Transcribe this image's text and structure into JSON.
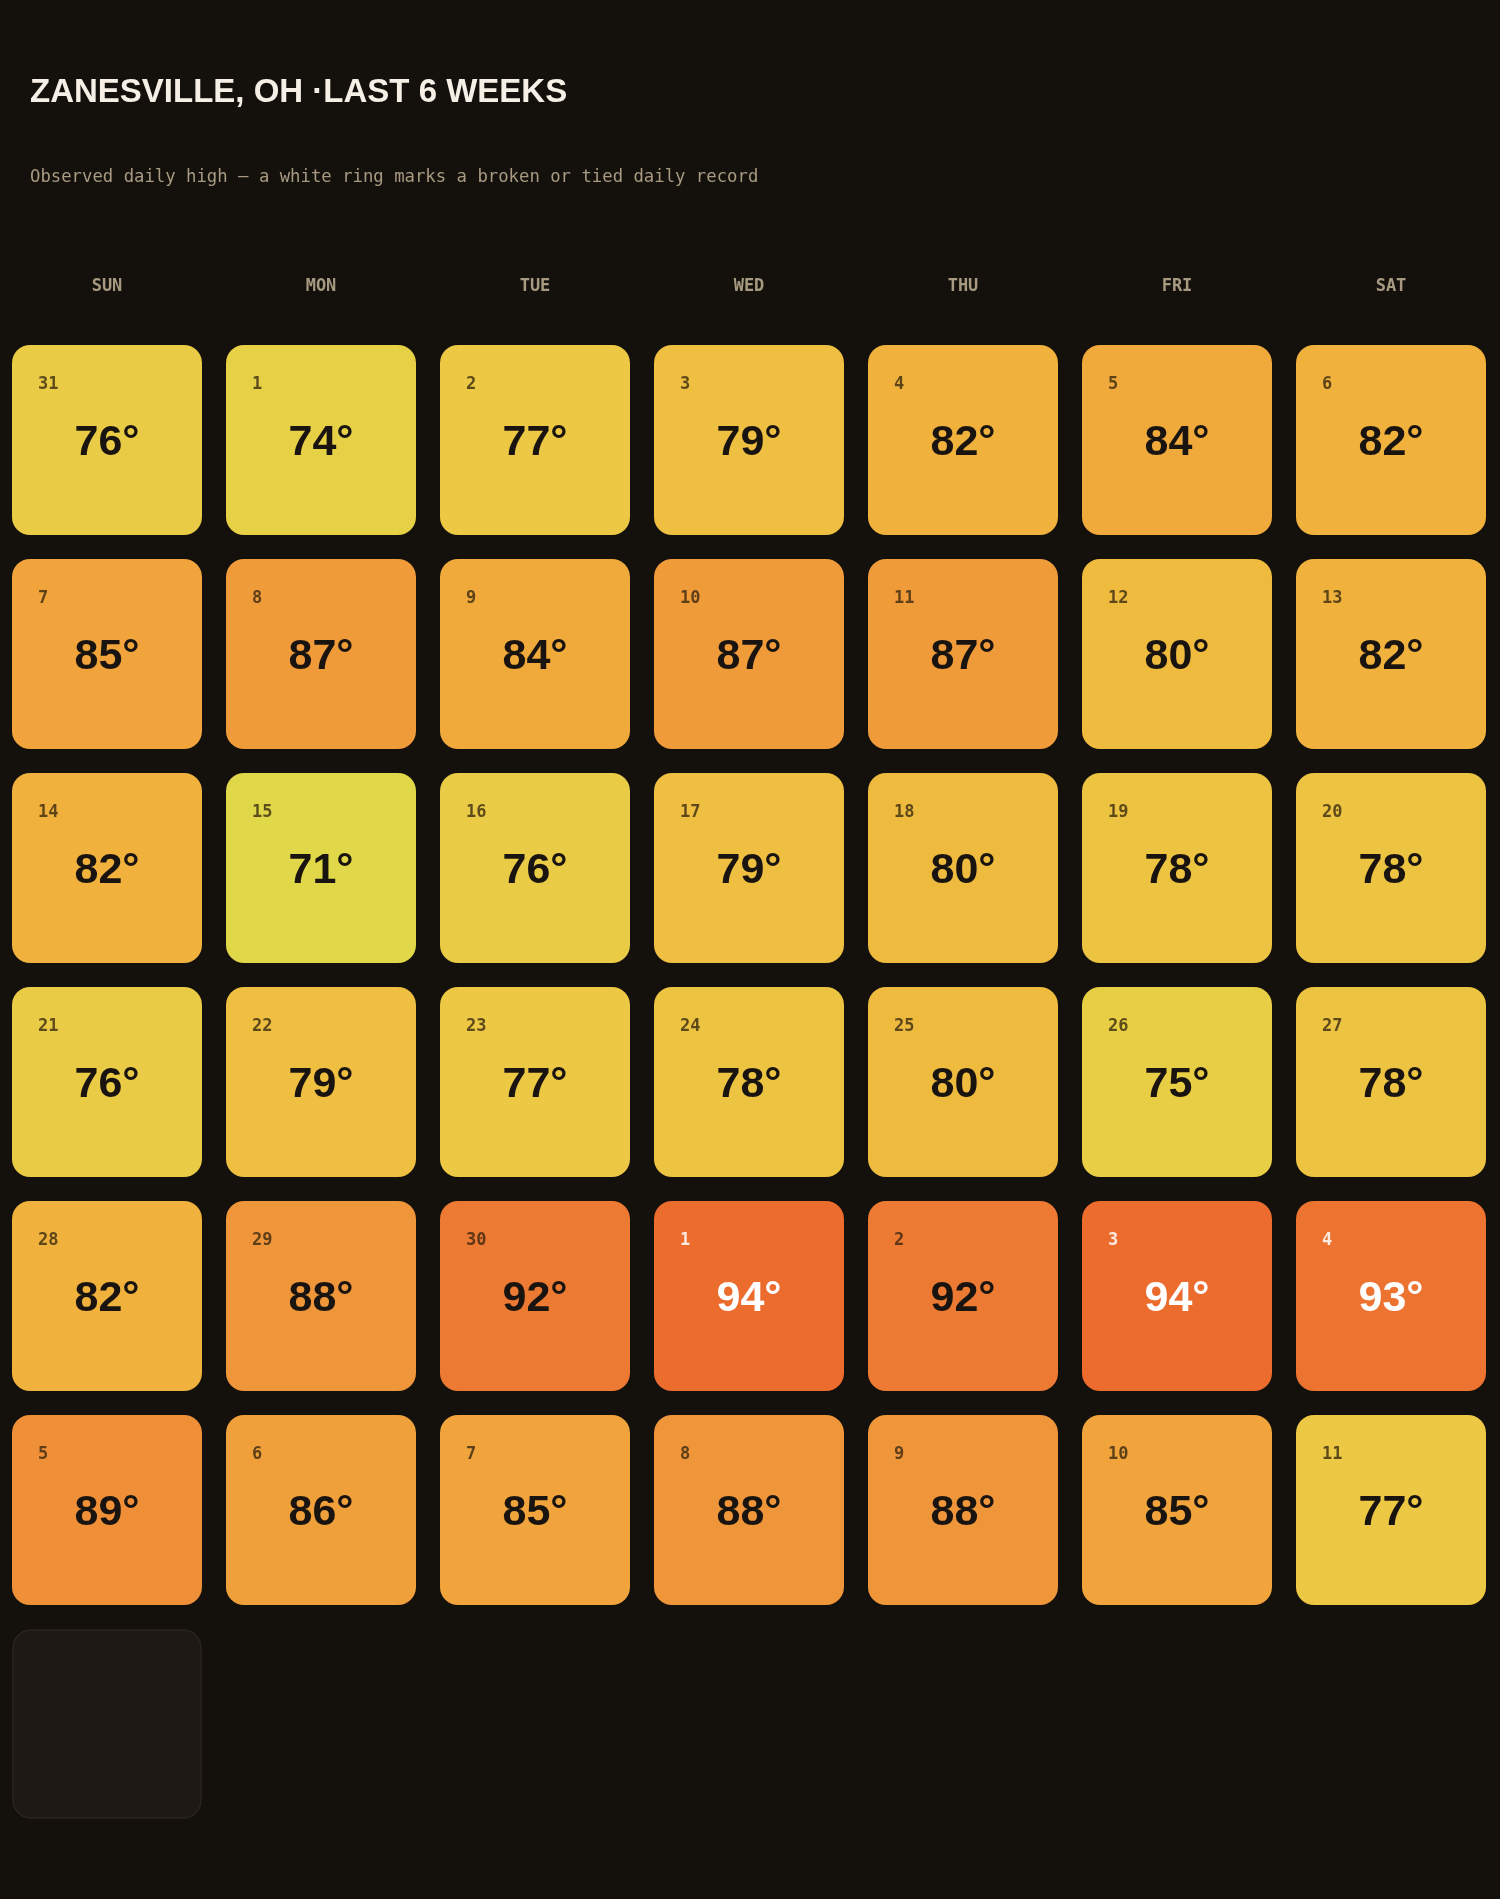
{
  "chart_data": {
    "type": "heatmap",
    "title": "ZANESVILLE, OH ·LAST 6 WEEKS",
    "subtitle": "Observed daily high — a white ring marks a broken or tied daily record",
    "categories": [
      "SUN",
      "MON",
      "TUE",
      "WED",
      "THU",
      "FRI",
      "SAT"
    ],
    "y_categories": [
      null,
      null,
      null,
      null,
      null,
      null
    ],
    "cells": [
      [
        76,
        74,
        77,
        79,
        82,
        84,
        82
      ],
      [
        85,
        87,
        84,
        87,
        87,
        80,
        82
      ],
      [
        82,
        71,
        76,
        79,
        80,
        78,
        78
      ],
      [
        76,
        79,
        77,
        78,
        80,
        75,
        78
      ],
      [
        82,
        88,
        92,
        94,
        92,
        94,
        93
      ],
      [
        89,
        86,
        85,
        88,
        88,
        85,
        77
      ]
    ],
    "cell_labels": [
      [
        "76°",
        "74°",
        "77°",
        "79°",
        "82°",
        "84°",
        "82°"
      ],
      [
        "85°",
        "87°",
        "84°",
        "87°",
        "87°",
        "80°",
        "82°"
      ],
      [
        "82°",
        "71°",
        "76°",
        "79°",
        "80°",
        "78°",
        "78°"
      ],
      [
        "76°",
        "79°",
        "77°",
        "78°",
        "80°",
        "75°",
        "78°"
      ],
      [
        "82°",
        "88°",
        "92°",
        "94°",
        "92°",
        "94°",
        "93°"
      ],
      [
        "89°",
        "86°",
        "85°",
        "88°",
        "88°",
        "85°",
        "77°"
      ]
    ],
    "annotations": [
      "31",
      "1",
      "2",
      "3",
      "4",
      "5",
      "6",
      "7",
      "8",
      "9",
      "10",
      "11",
      "12",
      "13",
      "14",
      "15",
      "16",
      "17",
      "18",
      "19",
      "20",
      "21",
      "22",
      "23",
      "24",
      "25",
      "26",
      "27",
      "28",
      "29",
      "30",
      "1",
      "2",
      "3",
      "4",
      "5",
      "6",
      "7",
      "8",
      "9",
      "10",
      "11"
    ],
    "colors": [
      "#e0d848",
      "#ecc944",
      "#f0b03c",
      "#f0953a",
      "#ec6c2e"
    ]
  }
}
